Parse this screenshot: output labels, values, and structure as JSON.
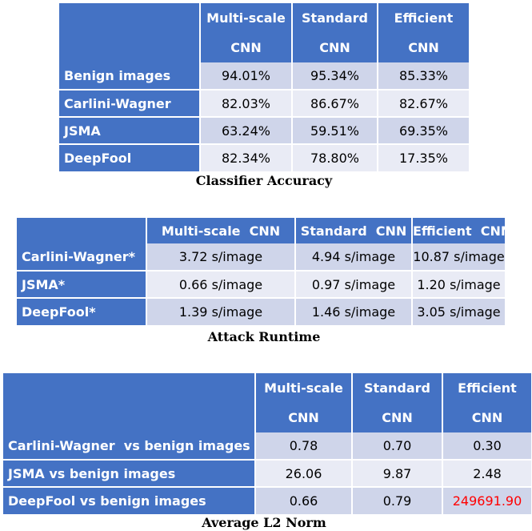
{
  "table1": {
    "headers": [
      {
        "l1": "Multi-scale",
        "l2": "CNN"
      },
      {
        "l1": "Standard",
        "l2": "CNN"
      },
      {
        "l1": "Efficient",
        "l2": "CNN"
      }
    ],
    "rows": [
      {
        "label": "Benign images",
        "values": [
          "94.01%",
          "95.34%",
          "85.33%"
        ]
      },
      {
        "label": "Carlini-Wagner",
        "values": [
          "82.03%",
          "86.67%",
          "82.67%"
        ]
      },
      {
        "label": "JSMA",
        "values": [
          "63.24%",
          "59.51%",
          "69.35%"
        ]
      },
      {
        "label": "DeepFool",
        "values": [
          "82.34%",
          "78.80%",
          "17.35%"
        ]
      }
    ],
    "caption": "Classifier Accuracy"
  },
  "table2": {
    "headers": [
      "Multi-scale  CNN",
      "Standard  CNN",
      "Efficient  CNN"
    ],
    "rows": [
      {
        "label": "Carlini-Wagner*",
        "values": [
          "3.72 s/image",
          "4.94 s/image",
          "10.87 s/image"
        ]
      },
      {
        "label": "JSMA*",
        "values": [
          "0.66 s/image",
          "0.97 s/image",
          "1.20 s/image"
        ]
      },
      {
        "label": "DeepFool*",
        "values": [
          "1.39 s/image",
          "1.46 s/image",
          "3.05 s/image"
        ]
      }
    ],
    "caption": "Attack Runtime"
  },
  "table3": {
    "headers": [
      {
        "l1": "Multi-scale",
        "l2": "CNN"
      },
      {
        "l1": "Standard",
        "l2": "CNN"
      },
      {
        "l1": "Efficient",
        "l2": "CNN"
      }
    ],
    "rows": [
      {
        "label": "Carlini-Wagner  vs benign images",
        "values": [
          "0.78",
          "0.70",
          "0.30"
        ]
      },
      {
        "label": "JSMA vs benign images",
        "values": [
          "26.06",
          "9.87",
          "2.48"
        ]
      },
      {
        "label": "DeepFool vs benign images",
        "values": [
          "0.66",
          "0.79",
          "249691.90"
        ]
      }
    ],
    "caption": "Average L2 Norm",
    "highlight_color": "#ff0000"
  }
}
